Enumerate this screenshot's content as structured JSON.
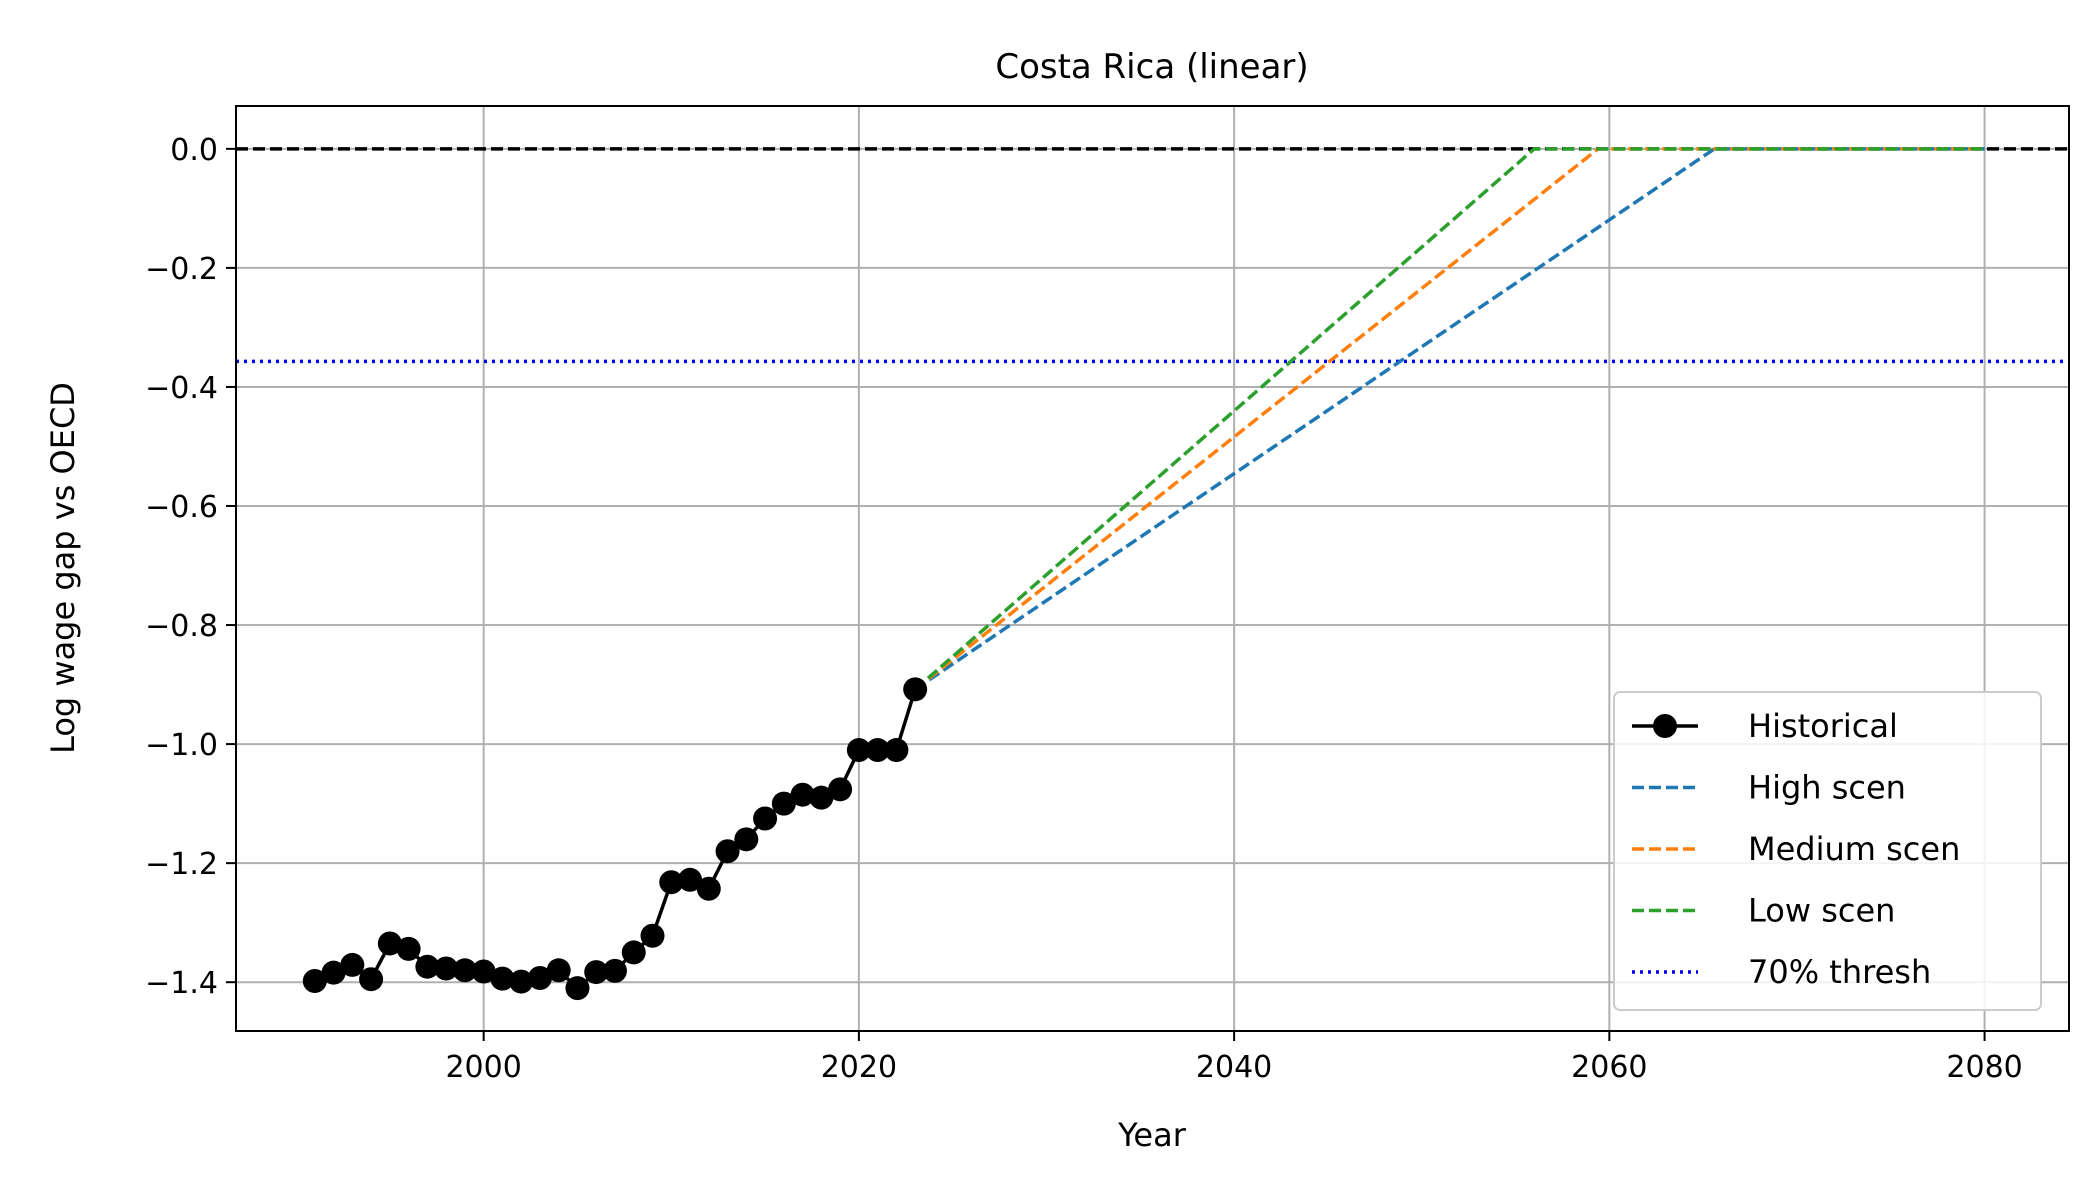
{
  "chart_data": {
    "type": "line",
    "title": "Costa Rica (linear)",
    "xlabel": "Year",
    "ylabel": "Log wage gap vs OECD",
    "xlim": [
      1986.8,
      2084.5
    ],
    "ylim": [
      -1.482,
      0.072
    ],
    "xticks": [
      2000,
      2020,
      2040,
      2060,
      2080
    ],
    "yticks": [
      0.0,
      -0.2,
      -0.4,
      -0.6,
      -0.8,
      -1.0,
      -1.2,
      -1.4
    ],
    "xtick_labels": [
      "2000",
      "2020",
      "2040",
      "2060",
      "2080"
    ],
    "ytick_labels": [
      "0.0",
      "−0.2",
      "−0.4",
      "−0.6",
      "−0.8",
      "−1.0",
      "−1.2",
      "−1.4"
    ],
    "grid": true,
    "legend_position": "lower-right",
    "historical": {
      "name": "Historical",
      "color": "#000000",
      "x": [
        1991,
        1992,
        1993,
        1994,
        1995,
        1996,
        1997,
        1998,
        1999,
        2000,
        2001,
        2002,
        2003,
        2004,
        2005,
        2006,
        2007,
        2008,
        2009,
        2010,
        2011,
        2012,
        2013,
        2014,
        2015,
        2016,
        2017,
        2018,
        2019,
        2020,
        2021,
        2022,
        2023
      ],
      "y": [
        -1.398,
        -1.384,
        -1.371,
        -1.395,
        -1.335,
        -1.344,
        -1.374,
        -1.377,
        -1.38,
        -1.382,
        -1.394,
        -1.399,
        -1.393,
        -1.38,
        -1.41,
        -1.383,
        -1.381,
        -1.35,
        -1.322,
        -1.232,
        -1.228,
        -1.243,
        -1.18,
        -1.16,
        -1.125,
        -1.1,
        -1.085,
        -1.09,
        -1.076,
        -1.01,
        -1.01,
        -1.01,
        -0.908
      ]
    },
    "scenarios": [
      {
        "name": "High scen",
        "color": "#1f77b4",
        "x": [
          2023,
          2065.6,
          2080
        ],
        "y": [
          -0.908,
          0.0,
          0.0
        ]
      },
      {
        "name": "Medium scen",
        "color": "#ff7f0e",
        "x": [
          2023,
          2059.4,
          2080
        ],
        "y": [
          -0.908,
          0.0,
          0.0
        ]
      },
      {
        "name": "Low scen",
        "color": "#2ca02c",
        "x": [
          2023,
          2056.0,
          2080
        ],
        "y": [
          -0.908,
          0.0,
          0.0
        ]
      }
    ],
    "reference_lines": [
      {
        "name": "",
        "y": 0.0,
        "color": "#000000",
        "style": "dashed"
      },
      {
        "name": "70% thresh",
        "y": -0.357,
        "color": "#0000ff",
        "style": "dotted"
      }
    ],
    "legend": [
      {
        "label": "Historical",
        "color": "#000000",
        "style": "solid-marker"
      },
      {
        "label": "High scen",
        "color": "#1f77b4",
        "style": "dashed"
      },
      {
        "label": "Medium scen",
        "color": "#ff7f0e",
        "style": "dashed"
      },
      {
        "label": "Low scen",
        "color": "#2ca02c",
        "style": "dashed"
      },
      {
        "label": "70% thresh",
        "color": "#0000ff",
        "style": "dotted"
      }
    ]
  }
}
